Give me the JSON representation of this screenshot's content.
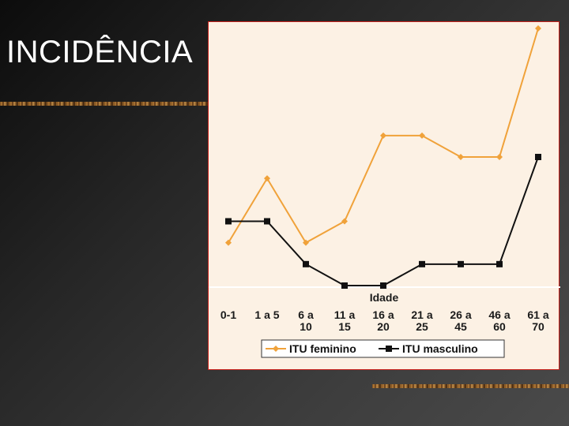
{
  "slide": {
    "title": "INCIDÊNCIA"
  },
  "colors": {
    "female": "#f0a23a",
    "male": "#111111",
    "panel_border": "#c8221c"
  },
  "chart_data": {
    "type": "line",
    "title": "",
    "xlabel": "Idade",
    "ylabel": "",
    "categories": [
      [
        "0-1"
      ],
      [
        "1 a 5"
      ],
      [
        "6 a",
        "10"
      ],
      [
        "11 a",
        "15"
      ],
      [
        "16 a",
        "20"
      ],
      [
        "21 a",
        "25"
      ],
      [
        "26 a",
        "45"
      ],
      [
        "46 a",
        "60"
      ],
      [
        "61 a",
        "70"
      ]
    ],
    "ylim": [
      0,
      12
    ],
    "grid": false,
    "legend_position": "bottom",
    "series": [
      {
        "name": "ITU feminino",
        "color": "#f0a23a",
        "marker": "diamond",
        "values": [
          2,
          5,
          2,
          3,
          7,
          7,
          6,
          6,
          12
        ]
      },
      {
        "name": "ITU masculino",
        "color": "#111111",
        "marker": "square",
        "values": [
          3,
          3,
          1,
          0,
          0,
          1,
          1,
          1,
          6
        ]
      }
    ]
  }
}
